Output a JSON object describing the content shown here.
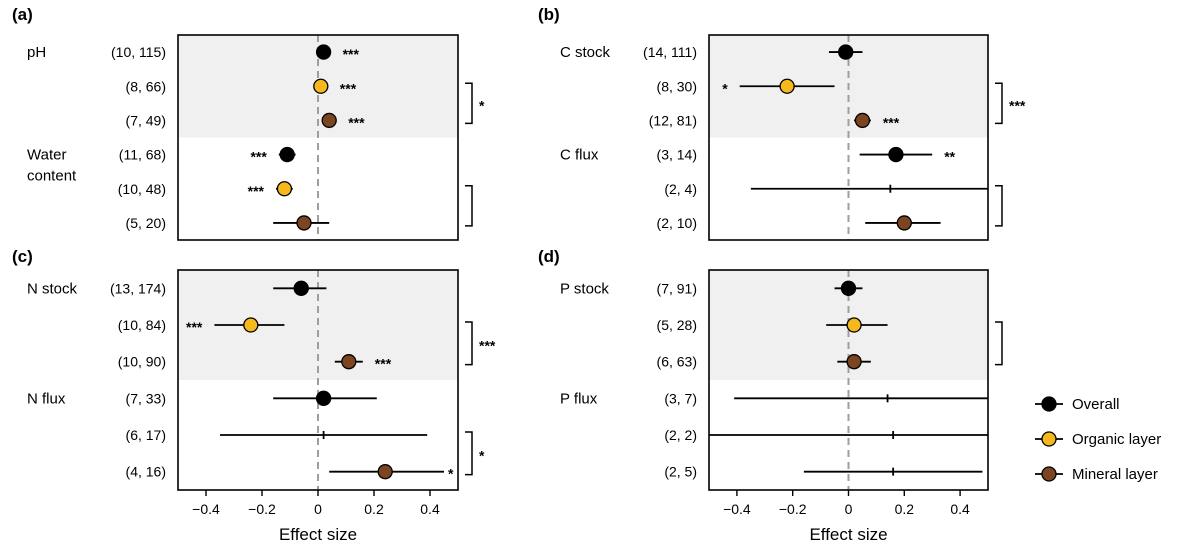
{
  "chart_data": [
    {
      "type": "forest",
      "panel_label": "(a)",
      "xlabel": "",
      "xlim": [
        -0.5,
        0.5
      ],
      "xticks": [
        -0.4,
        -0.2,
        0,
        0.2,
        0.4
      ],
      "groups": [
        {
          "name": "pH",
          "rows": [
            {
              "label": "(10, 115)",
              "series": "Overall",
              "estimate": 0.02,
              "ci": null,
              "sig": "***"
            },
            {
              "label": "(8, 66)",
              "series": "Organic layer",
              "estimate": 0.01,
              "ci": null,
              "sig": "***"
            },
            {
              "label": "(7, 49)",
              "series": "Mineral layer",
              "estimate": 0.04,
              "ci": null,
              "sig": "***"
            }
          ],
          "bracket_sig": "*"
        },
        {
          "name": "Water\ncontent",
          "rows": [
            {
              "label": "(11, 68)",
              "series": "Overall",
              "estimate": -0.11,
              "ci": [
                -0.14,
                -0.08
              ],
              "sig": "***",
              "sig_side": "left"
            },
            {
              "label": "(10, 48)",
              "series": "Organic layer",
              "estimate": -0.12,
              "ci": [
                -0.15,
                -0.09
              ],
              "sig": "***",
              "sig_side": "left"
            },
            {
              "label": "(5, 20)",
              "series": "Mineral layer",
              "estimate": -0.05,
              "ci": [
                -0.16,
                0.04
              ],
              "sig": ""
            }
          ],
          "bracket_sig": ""
        }
      ]
    },
    {
      "type": "forest",
      "panel_label": "(b)",
      "xlabel": "",
      "xlim": [
        -0.5,
        0.5
      ],
      "xticks": [
        -0.4,
        -0.2,
        0,
        0.2,
        0.4
      ],
      "groups": [
        {
          "name": "C stock",
          "rows": [
            {
              "label": "(14, 111)",
              "series": "Overall",
              "estimate": -0.01,
              "ci": [
                -0.07,
                0.05
              ],
              "sig": ""
            },
            {
              "label": "(8, 30)",
              "series": "Organic layer",
              "estimate": -0.22,
              "ci": [
                -0.39,
                -0.05
              ],
              "sig": "*",
              "sig_side": "left"
            },
            {
              "label": "(12, 81)",
              "series": "Mineral layer",
              "estimate": 0.05,
              "ci": [
                0.02,
                0.08
              ],
              "sig": "***"
            }
          ],
          "bracket_sig": "***"
        },
        {
          "name": "C flux",
          "rows": [
            {
              "label": "(3, 14)",
              "series": "Overall",
              "estimate": 0.17,
              "ci": [
                0.04,
                0.3
              ],
              "sig": "**"
            },
            {
              "label": "(2, 4)",
              "series": "Organic layer",
              "estimate": 0.15,
              "ci": [
                -0.35,
                0.5
              ],
              "sig": ""
            },
            {
              "label": "(2, 10)",
              "series": "Mineral layer",
              "estimate": 0.2,
              "ci": [
                0.06,
                0.33
              ],
              "sig": ""
            }
          ],
          "bracket_sig": ""
        }
      ]
    },
    {
      "type": "forest",
      "panel_label": "(c)",
      "xlabel": "Effect size",
      "xlim": [
        -0.5,
        0.5
      ],
      "xticks": [
        -0.4,
        -0.2,
        0,
        0.2,
        0.4
      ],
      "groups": [
        {
          "name": "N stock",
          "rows": [
            {
              "label": "(13, 174)",
              "series": "Overall",
              "estimate": -0.06,
              "ci": [
                -0.16,
                0.03
              ],
              "sig": ""
            },
            {
              "label": "(10, 84)",
              "series": "Organic layer",
              "estimate": -0.24,
              "ci": [
                -0.37,
                -0.12
              ],
              "sig": "***",
              "sig_side": "left"
            },
            {
              "label": "(10, 90)",
              "series": "Mineral layer",
              "estimate": 0.11,
              "ci": [
                0.06,
                0.16
              ],
              "sig": "***"
            }
          ],
          "bracket_sig": "***"
        },
        {
          "name": "N flux",
          "rows": [
            {
              "label": "(7, 33)",
              "series": "Overall",
              "estimate": 0.02,
              "ci": [
                -0.16,
                0.21
              ],
              "sig": ""
            },
            {
              "label": "(6, 17)",
              "series": "Organic layer",
              "estimate": 0.02,
              "ci": [
                -0.35,
                0.39
              ],
              "sig": ""
            },
            {
              "label": "(4, 16)",
              "series": "Mineral layer",
              "estimate": 0.24,
              "ci": [
                0.04,
                0.45
              ],
              "sig": "*",
              "sig_side": "end"
            }
          ],
          "bracket_sig": "*"
        }
      ]
    },
    {
      "type": "forest",
      "panel_label": "(d)",
      "xlabel": "Effect size",
      "xlim": [
        -0.5,
        0.5
      ],
      "xticks": [
        -0.4,
        -0.2,
        0,
        0.2,
        0.4
      ],
      "groups": [
        {
          "name": "P stock",
          "rows": [
            {
              "label": "(7, 91)",
              "series": "Overall",
              "estimate": 0.0,
              "ci": [
                -0.05,
                0.05
              ],
              "sig": ""
            },
            {
              "label": "(5, 28)",
              "series": "Organic layer",
              "estimate": 0.02,
              "ci": [
                -0.08,
                0.14
              ],
              "sig": ""
            },
            {
              "label": "(6, 63)",
              "series": "Mineral layer",
              "estimate": 0.02,
              "ci": [
                -0.04,
                0.08
              ],
              "sig": ""
            }
          ],
          "bracket_sig": ""
        },
        {
          "name": "P flux",
          "rows": [
            {
              "label": "(3, 7)",
              "series": "Overall",
              "estimate": 0.14,
              "ci": [
                -0.41,
                0.5
              ],
              "sig": ""
            },
            {
              "label": "(2, 2)",
              "series": "Organic layer",
              "estimate": 0.16,
              "ci": [
                -0.5,
                0.5
              ],
              "sig": ""
            },
            {
              "label": "(2, 5)",
              "series": "Mineral layer",
              "estimate": 0.16,
              "ci": [
                -0.16,
                0.48
              ],
              "sig": ""
            }
          ]
        }
      ]
    }
  ],
  "legend": {
    "placement": "right",
    "items": [
      {
        "name": "Overall",
        "color": "#000000"
      },
      {
        "name": "Organic layer",
        "color": "#f5b81d"
      },
      {
        "name": "Mineral layer",
        "color": "#7b4521"
      }
    ]
  },
  "colors": {
    "Overall": "#000000",
    "Organic layer": "#f5b81d",
    "Mineral layer": "#7b4521",
    "shade": "#f0f0f0",
    "zero_line": "#9e9e9e"
  }
}
